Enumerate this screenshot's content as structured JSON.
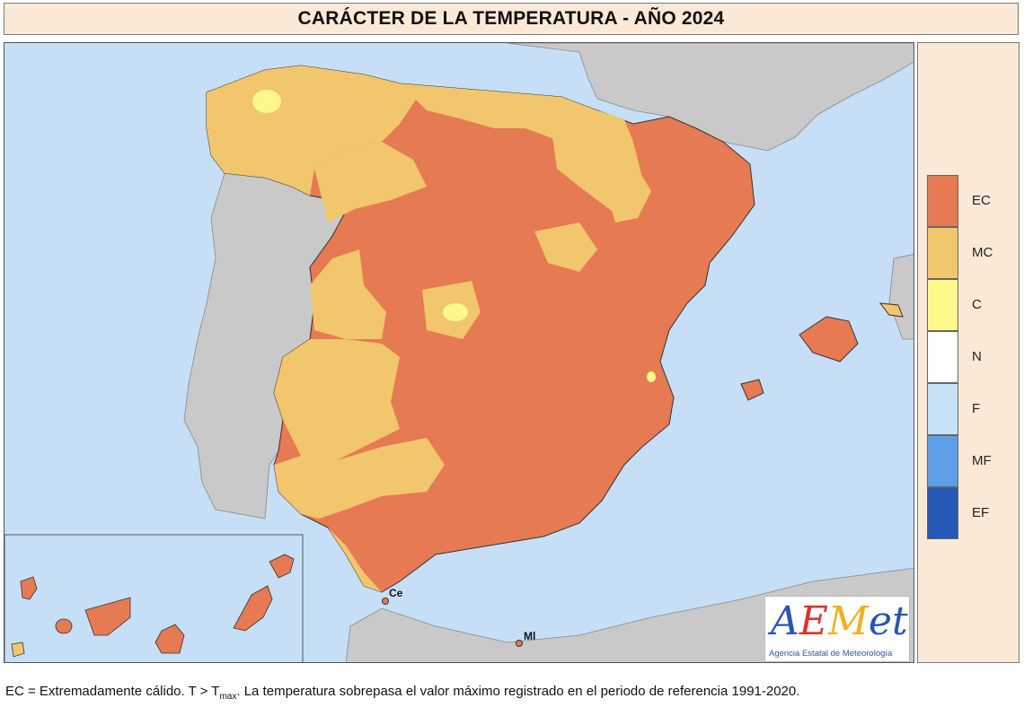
{
  "title": "CARÁCTER DE LA TEMPERATURA - AÑO 2024",
  "legend": [
    {
      "code": "EC",
      "color": "#e67a52"
    },
    {
      "code": "MC",
      "color": "#f2c66d"
    },
    {
      "code": "C",
      "color": "#fdf88a"
    },
    {
      "code": "N",
      "color": "#ffffff"
    },
    {
      "code": "F",
      "color": "#c6e2f7"
    },
    {
      "code": "MF",
      "color": "#5d9ee6"
    },
    {
      "code": "EF",
      "color": "#2459b8"
    }
  ],
  "places": {
    "ceuta": "Ce",
    "melilla": "Ml"
  },
  "logo": {
    "letters": [
      {
        "ch": "A",
        "color": "#2a55b0"
      },
      {
        "ch": "E",
        "color": "#e0322b"
      },
      {
        "ch": "M",
        "color": "#f2b01e"
      },
      {
        "ch": "e",
        "color": "#2a55b0"
      },
      {
        "ch": "t",
        "color": "#2a55b0"
      }
    ],
    "subtitle": "Agencia Estatal de Meteorología"
  },
  "footnote": {
    "prefix": "EC  = Extremadamente cálido. T > T",
    "sub": "max",
    "suffix": ". La temperatura sobrepasa el valor máximo registrado en el periodo de referencia 1991-2020."
  },
  "colors": {
    "sea": "#c6dff7",
    "land": "#c9c9c9",
    "warm": "#e67a52",
    "very_warm": "#f2c66d",
    "cool": "#fdf88a"
  }
}
